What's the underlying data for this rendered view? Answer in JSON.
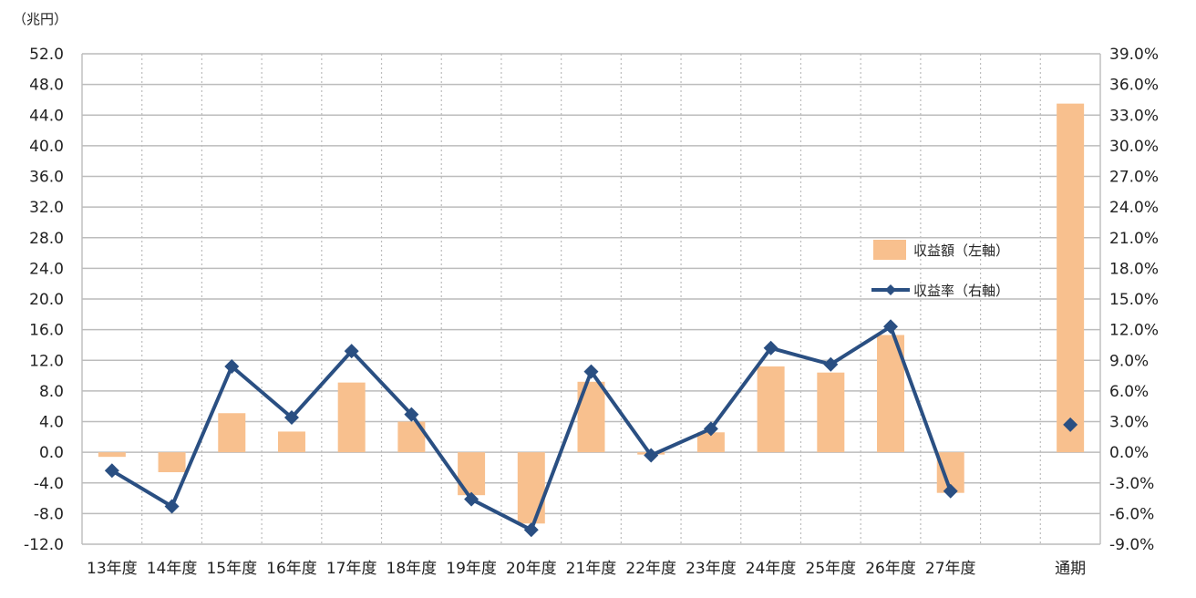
{
  "chart_data": {
    "type": "bar+line",
    "y_unit_label": "（兆円）",
    "categories": [
      "13年度",
      "14年度",
      "15年度",
      "16年度",
      "17年度",
      "18年度",
      "19年度",
      "20年度",
      "21年度",
      "22年度",
      "23年度",
      "24年度",
      "25年度",
      "26年度",
      "27年度",
      "",
      "通期"
    ],
    "series": [
      {
        "name": "収益額（左軸）",
        "type": "bar",
        "axis": "left",
        "color": "#f8c08e",
        "values": [
          -0.6,
          -2.6,
          5.1,
          2.7,
          9.1,
          4.0,
          -5.6,
          -9.3,
          9.2,
          -0.3,
          2.6,
          11.2,
          10.4,
          15.3,
          -5.3,
          null,
          45.5
        ]
      },
      {
        "name": "収益率（右軸）",
        "type": "line",
        "axis": "right",
        "color": "#2a4f82",
        "values": [
          -1.8,
          -5.3,
          8.4,
          3.4,
          9.9,
          3.7,
          -4.6,
          -7.6,
          7.9,
          -0.3,
          2.3,
          10.2,
          8.6,
          12.3,
          -3.8,
          null,
          2.7
        ]
      }
    ],
    "y_left": {
      "min": -12,
      "max": 52,
      "step": 4,
      "ticks": [
        "52.0",
        "48.0",
        "44.0",
        "40.0",
        "36.0",
        "32.0",
        "28.0",
        "24.0",
        "20.0",
        "16.0",
        "12.0",
        "8.0",
        "4.0",
        "0.0",
        "-4.0",
        "-8.0",
        "-12.0"
      ]
    },
    "y_right": {
      "min": -9,
      "max": 39,
      "step": 3,
      "ticks": [
        "39.0%",
        "36.0%",
        "33.0%",
        "30.0%",
        "27.0%",
        "24.0%",
        "21.0%",
        "18.0%",
        "15.0%",
        "12.0%",
        "9.0%",
        "6.0%",
        "3.0%",
        "0.0%",
        "-3.0%",
        "-6.0%",
        "-9.0%"
      ]
    },
    "grid": true,
    "legend_position": "center-right"
  },
  "colors": {
    "bar": "#f8c08e",
    "line": "#2a4f82",
    "grid": "#bcbcbc"
  }
}
